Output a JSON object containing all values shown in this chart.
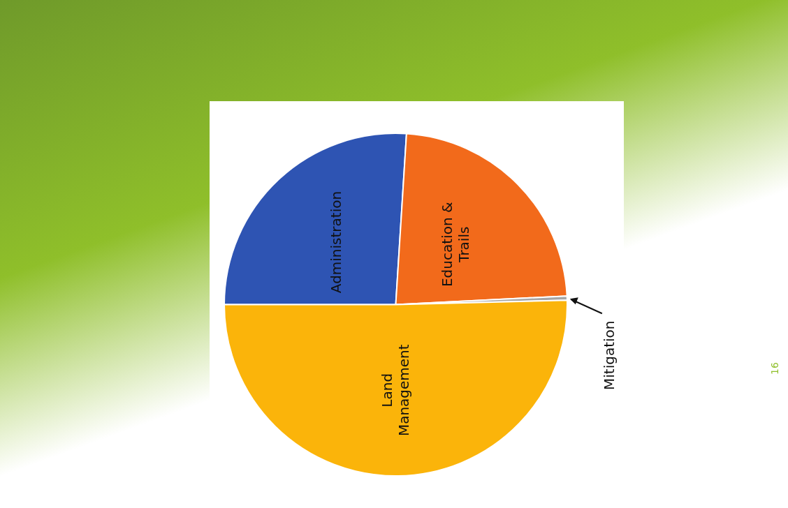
{
  "chart_data": {
    "type": "pie",
    "categories": [
      "Administration",
      "Education & Trails",
      "Mitigation",
      "Land Management"
    ],
    "values": [
      26,
      23.2,
      0.4,
      50.4
    ],
    "colors": [
      "#2e54b3",
      "#f26a1b",
      "#a6a6a6",
      "#fbb40a"
    ],
    "legend": false,
    "annotations": [
      "16"
    ]
  }
}
